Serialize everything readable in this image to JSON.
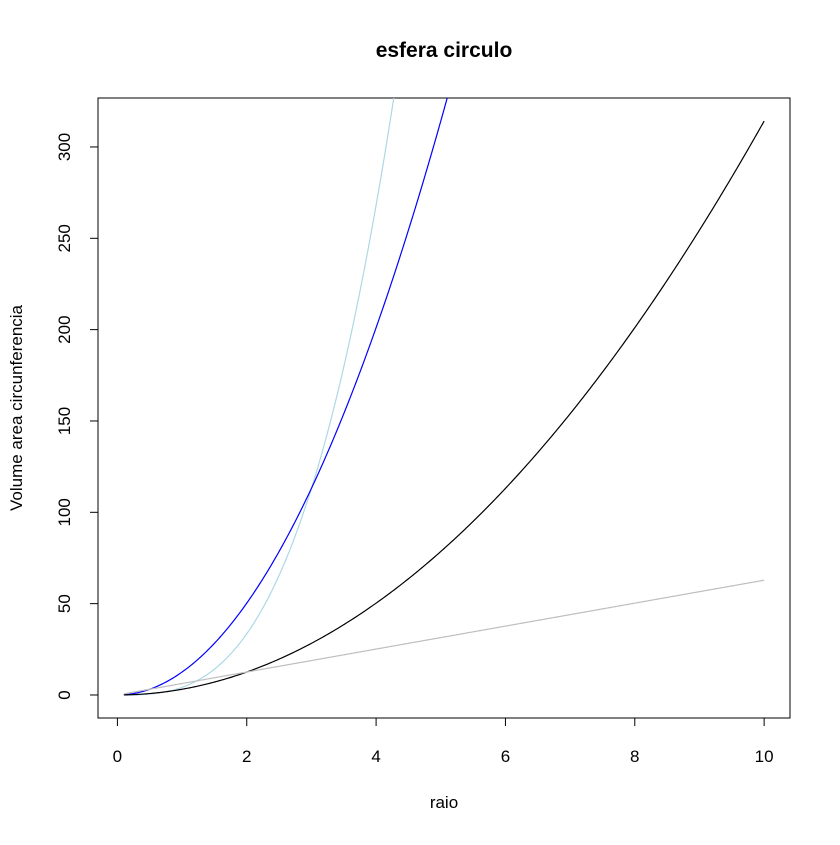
{
  "chart_data": {
    "type": "line",
    "title": "esfera circulo",
    "xlabel": "raio",
    "ylabel": "Volume area circunferencia",
    "xlim": [
      -0.3,
      10.4
    ],
    "ylim": [
      -12.6,
      326.8
    ],
    "x_ticks": [
      0,
      2,
      4,
      6,
      8,
      10
    ],
    "y_ticks": [
      0,
      50,
      100,
      150,
      200,
      250,
      300
    ],
    "x_range": [
      0.1,
      10
    ],
    "grid": false,
    "legend": "none",
    "series": [
      {
        "formula": "4/3*pi*r^3",
        "color": "#add8e6"
      },
      {
        "formula": "4*pi*r^2",
        "color": "#0000ff"
      },
      {
        "formula": "pi*r^2",
        "color": "#000000"
      },
      {
        "formula": "2*pi*r",
        "color": "#bebebe"
      }
    ]
  }
}
